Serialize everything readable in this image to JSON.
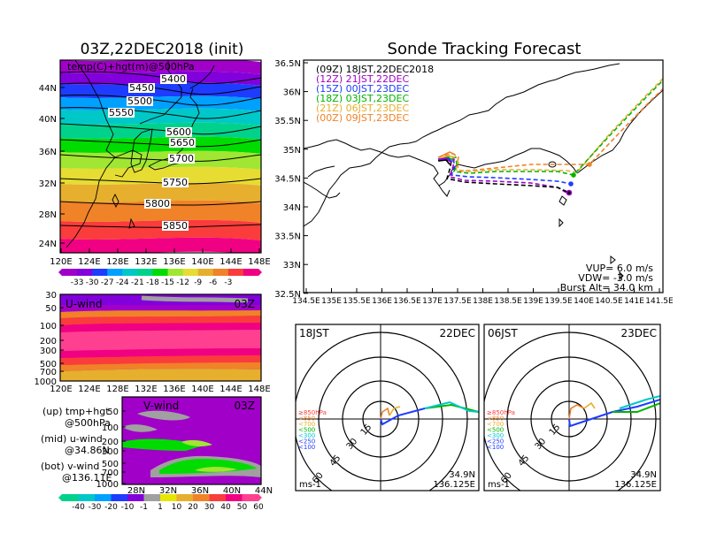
{
  "colors": {
    "cb": [
      "#a000c8",
      "#8200dc",
      "#1e3cff",
      "#00a0ff",
      "#00c8c8",
      "#00d28c",
      "#00dc00",
      "#a0e632",
      "#e6dc32",
      "#e6af2d",
      "#f08228",
      "#fa3c3c",
      "#f00082"
    ],
    "vcb": [
      "#00d28c",
      "#00c8c8",
      "#00a0ff",
      "#1e3cff",
      "#8200dc",
      "#a0a0a0",
      "#e6e600",
      "#e6af2d",
      "#f08228",
      "#fa3c3c",
      "#f00082",
      "#ff4090"
    ],
    "traj": [
      "#000000",
      "#a000c8",
      "#1e3cff",
      "#00b400",
      "#e6af2d",
      "#f08228"
    ]
  },
  "map": {
    "title": "03Z,22DEC2018 (init)",
    "subtitle": "temp(C)+hgt(m)@500hPa",
    "lon_ticks": [
      "120E",
      "124E",
      "128E",
      "132E",
      "136E",
      "140E",
      "144E",
      "148E"
    ],
    "lat_ticks": [
      "44N",
      "40N",
      "36N",
      "32N",
      "28N",
      "24N"
    ],
    "contours": [
      "5400",
      "5450",
      "5500",
      "5550",
      "5600",
      "5650",
      "5700",
      "5750",
      "5800",
      "5850"
    ],
    "cbar_labels": [
      "-33",
      "-30",
      "-27",
      "-24",
      "-21",
      "-18",
      "-15",
      "-12",
      "-9",
      "-6",
      "-3"
    ]
  },
  "u": {
    "title": "U-wind",
    "time": "03Z",
    "p_ticks": [
      "30",
      "50",
      "100",
      "200",
      "300",
      "500",
      "700",
      "1000"
    ],
    "lon_ticks": [
      "120E",
      "124E",
      "128E",
      "132E",
      "136E",
      "140E",
      "144E",
      "148E"
    ]
  },
  "v": {
    "title": "V-wind",
    "time": "03Z",
    "p_ticks": [
      "50",
      "100",
      "200",
      "300",
      "500",
      "700",
      "1000"
    ],
    "lat_ticks": [
      "28N",
      "32N",
      "36N",
      "40N",
      "44N"
    ],
    "cbar_labels": [
      "-40",
      "-30",
      "-20",
      "-10",
      "-1",
      "1",
      "10",
      "20",
      "30",
      "40",
      "50",
      "60"
    ]
  },
  "notes": {
    "l1": "(up) tmp+hgt",
    "l2": "@500hPa",
    "l3": "(mid) u-wind",
    "l4": "@34.86N",
    "l5": "(bot) v-wind",
    "l6": "@136.11E"
  },
  "track": {
    "title": "Sonde Tracking Forecast",
    "legend": [
      "(09Z)  18JST,22DEC2018",
      "(12Z)  21JST,22DEC",
      "(15Z)  00JST,23DEC",
      "(18Z)  03JST,23DEC",
      "(21Z)  06JST,23DEC",
      "(00Z)  09JST,23DEC"
    ],
    "lat_ticks": [
      "36.5N",
      "36N",
      "35.5N",
      "35N",
      "34.5N",
      "34N",
      "33.5N",
      "33N",
      "32.5N"
    ],
    "lon_ticks": [
      "134.5E",
      "135E",
      "135.5E",
      "136E",
      "136.5E",
      "137E",
      "137.5E",
      "138E",
      "138.5E",
      "139E",
      "139.5E",
      "140E",
      "140.5E",
      "141E",
      "141.5E"
    ],
    "vup": "VUP=  6.0  m/s",
    "vdw": "VDW= -3.0  m/s",
    "burst": "Burst Alt=  34.0  km"
  },
  "polar1": {
    "time": "18JST",
    "date": "22DEC",
    "rings": [
      "15",
      "30",
      "45",
      "60"
    ],
    "unit": "ms-1",
    "lat": "34.9N",
    "lon": "136.125E"
  },
  "polar2": {
    "time": "06JST",
    "date": "23DEC",
    "rings": [
      "15",
      "30",
      "45",
      "60"
    ],
    "unit": "ms-1",
    "lat": "34.9N",
    "lon": "136.125E"
  },
  "polar_legend": [
    "≥850hPa",
    "<850",
    "<700",
    "<500",
    "<300",
    "<250",
    "<100"
  ]
}
